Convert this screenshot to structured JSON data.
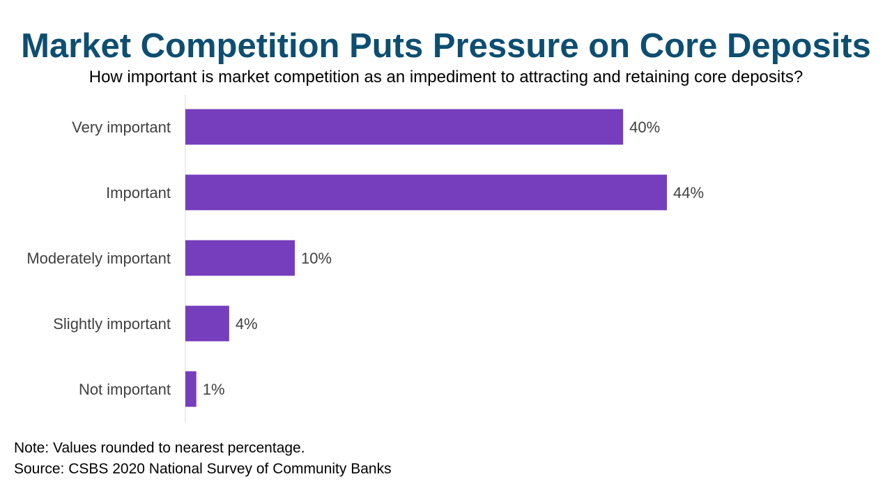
{
  "title": "Market Competition Puts Pressure on Core Deposits",
  "subtitle": "How important is market competition as an impediment to attracting and retaining core deposits?",
  "note": "Note: Values rounded to nearest percentage.",
  "source": "Source: CSBS 2020 National Survey of Community Banks",
  "colors": {
    "bar": "#763dbc",
    "title": "#0d4e71",
    "axis": "#d9d9d9"
  },
  "chart_data": {
    "type": "bar",
    "orientation": "horizontal",
    "categories": [
      "Very important",
      "Important",
      "Moderately important",
      "Slightly important",
      "Not important"
    ],
    "values": [
      40,
      44,
      10,
      4,
      1
    ],
    "value_labels": [
      "40%",
      "44%",
      "10%",
      "4%",
      "1%"
    ],
    "xlim": [
      0,
      44
    ],
    "grid": false,
    "legend": "none"
  }
}
